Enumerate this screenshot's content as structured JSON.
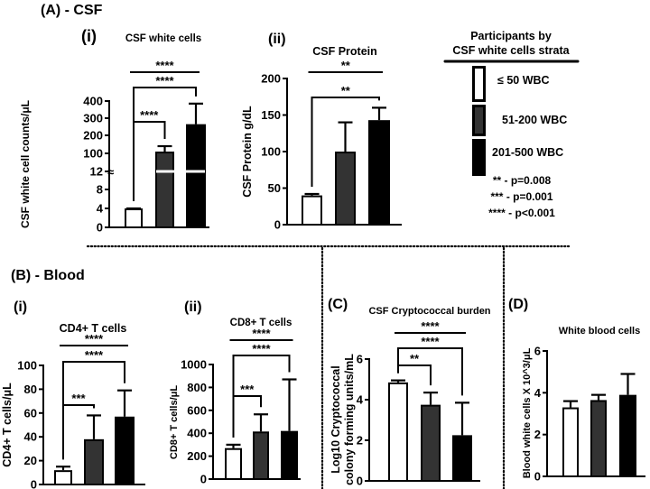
{
  "colors": {
    "group1": "#ffffff",
    "group2": "#333333",
    "group3": "#000000",
    "axis": "#000000"
  },
  "sections": {
    "A": "(A) - CSF",
    "B": "(B) - Blood"
  },
  "legend": {
    "title_line1": "Participants by",
    "title_line2": "CSF white cells strata",
    "items": [
      "≤ 50 WBC",
      "51-200 WBC",
      "201-500 WBC"
    ],
    "pvalues": [
      "** - p=0.008",
      "*** - p=0.001",
      "**** - p<0.001"
    ]
  },
  "chart_data": [
    {
      "id": "A_i",
      "type": "bar",
      "panel": "(i)",
      "title": "CSF white cells",
      "ylabel": "CSF white cell counts/μL",
      "categories": [
        "≤ 50 WBC",
        "51-200 WBC",
        "201-500 WBC"
      ],
      "values": [
        4,
        110,
        265
      ],
      "errors_upper": [
        4,
        140,
        385
      ],
      "yticks": [
        0,
        4,
        8,
        12,
        100,
        200,
        300,
        400
      ],
      "ylim": [
        0,
        400
      ],
      "axis_break": 12,
      "comparisons": [
        {
          "groups": [
            0,
            2
          ],
          "label": "****",
          "style": "line"
        },
        {
          "groups": [
            0,
            2
          ],
          "label": "****",
          "style": "bracket"
        },
        {
          "groups": [
            0,
            1
          ],
          "label": "****",
          "style": "bracket"
        }
      ]
    },
    {
      "id": "A_ii",
      "type": "bar",
      "panel": "(ii)",
      "title": "CSF Protein",
      "ylabel": "CSF Protein g/dL",
      "categories": [
        "≤ 50 WBC",
        "51-200 WBC",
        "201-500 WBC"
      ],
      "values": [
        40,
        100,
        143
      ],
      "errors_upper": [
        42,
        140,
        160
      ],
      "yticks": [
        0,
        50,
        100,
        150,
        200
      ],
      "ylim": [
        0,
        200
      ],
      "comparisons": [
        {
          "groups": [
            0,
            2
          ],
          "label": "**",
          "style": "line"
        },
        {
          "groups": [
            0,
            2
          ],
          "label": "**",
          "style": "bracket"
        }
      ]
    },
    {
      "id": "B_i",
      "type": "bar",
      "panel": "(i)",
      "title": "CD4+ T cells",
      "ylabel": "CD4+ T cells/μL",
      "categories": [
        "≤ 50 WBC",
        "51-200 WBC",
        "201-500 WBC"
      ],
      "values": [
        12,
        38,
        57
      ],
      "errors_upper": [
        15,
        58,
        79
      ],
      "yticks": [
        0,
        20,
        40,
        60,
        80,
        100
      ],
      "ylim": [
        0,
        100
      ],
      "comparisons": [
        {
          "groups": [
            0,
            2
          ],
          "label": "****",
          "style": "line"
        },
        {
          "groups": [
            0,
            2
          ],
          "label": "****",
          "style": "bracket"
        },
        {
          "groups": [
            0,
            1
          ],
          "label": "***",
          "style": "bracket"
        }
      ]
    },
    {
      "id": "B_ii",
      "type": "bar",
      "panel": "(ii)",
      "title": "CD8+ T cells",
      "ylabel": "CD8+ T cells/μL",
      "categories": [
        "≤ 50 WBC",
        "51-200 WBC",
        "201-500 WBC"
      ],
      "values": [
        270,
        415,
        420
      ],
      "errors_upper": [
        300,
        565,
        870
      ],
      "yticks": [
        0,
        200,
        400,
        600,
        800,
        1000
      ],
      "ylim": [
        0,
        1000
      ],
      "comparisons": [
        {
          "groups": [
            0,
            2
          ],
          "label": "****",
          "style": "line"
        },
        {
          "groups": [
            0,
            2
          ],
          "label": "****",
          "style": "bracket"
        },
        {
          "groups": [
            0,
            1
          ],
          "label": "***",
          "style": "bracket"
        }
      ]
    },
    {
      "id": "C",
      "type": "bar",
      "panel": "(C)",
      "title": "CSF Cryptococcal burden",
      "ylabel": "Log10 Cryptococcal",
      "ylabel2": "colony forming units/mL",
      "categories": [
        "≤ 50 WBC",
        "51-200 WBC",
        "201-500 WBC"
      ],
      "values": [
        4.85,
        3.75,
        2.25
      ],
      "errors_upper": [
        4.95,
        4.35,
        3.85
      ],
      "yticks": [
        0,
        2,
        4,
        6
      ],
      "ylim": [
        0,
        6
      ],
      "comparisons": [
        {
          "groups": [
            0,
            2
          ],
          "label": "****",
          "style": "line"
        },
        {
          "groups": [
            0,
            2
          ],
          "label": "****",
          "style": "bracket"
        },
        {
          "groups": [
            0,
            1
          ],
          "label": "**",
          "style": "bracket"
        }
      ]
    },
    {
      "id": "D",
      "type": "bar",
      "panel": "(D)",
      "title": "White blood cells",
      "ylabel": "Blood white cells X 10^3/μL",
      "categories": [
        "≤ 50 WBC",
        "51-200 WBC",
        "201-500 WBC"
      ],
      "values": [
        3.3,
        3.65,
        3.9
      ],
      "errors_upper": [
        3.6,
        3.9,
        4.9
      ],
      "yticks": [
        0,
        2,
        4,
        6
      ],
      "ylim": [
        0,
        6
      ],
      "comparisons": []
    }
  ]
}
